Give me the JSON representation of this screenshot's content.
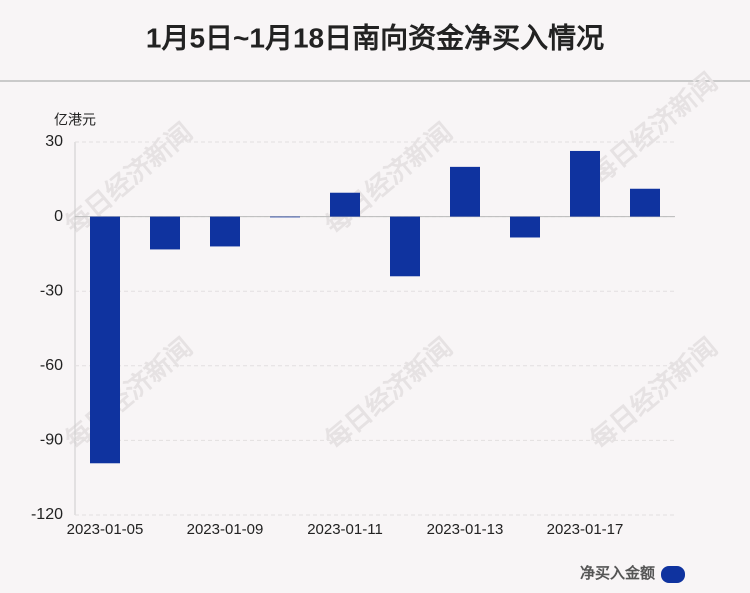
{
  "chart_data": {
    "type": "bar",
    "title": "1月5日~1月18日南向资金净买入情况",
    "y_label": "亿港元",
    "watermark": "每日经济新闻",
    "categories": [
      "2023-01-05",
      null,
      "2023-01-09",
      null,
      "2023-01-11",
      null,
      "2023-01-13",
      null,
      "2023-01-17",
      null
    ],
    "series": [
      {
        "name": "净买入金额",
        "color": "#0f339f",
        "values": [
          -99.2,
          -13.2,
          -12,
          -0.3,
          9.6,
          -24,
          20,
          -8.4,
          26.4,
          11.2
        ]
      }
    ],
    "ylim": [
      -120,
      30
    ],
    "yticks": [
      -120,
      -90,
      -60,
      -30,
      0,
      30
    ],
    "grid": true,
    "legend": "bottom-right"
  }
}
